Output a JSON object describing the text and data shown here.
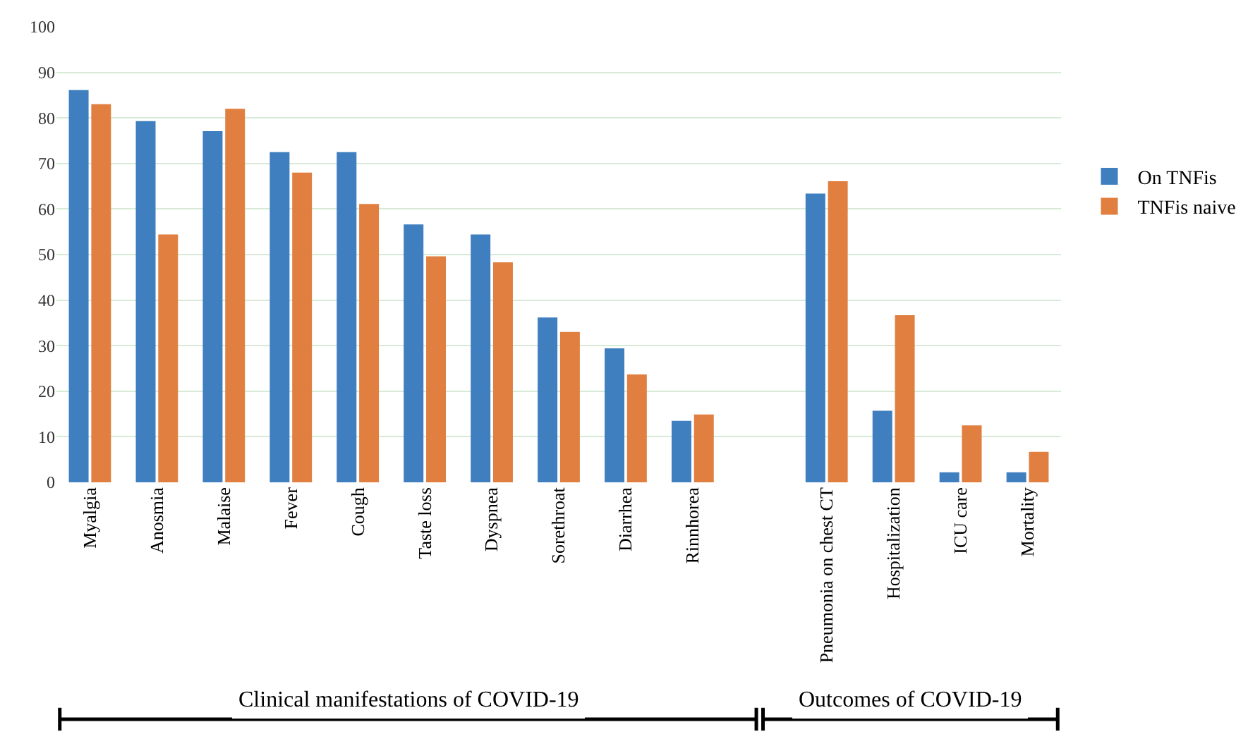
{
  "chart_data": {
    "type": "bar",
    "categories": [
      "Myalgia",
      "Anosmia",
      "Malaise",
      "Fever",
      "Cough",
      "Taste loss",
      "Dyspnea",
      "Sorethroat",
      "Diarrhea",
      "Rinnhorea",
      null,
      "Pneumonia on chest CT",
      "Hospitalization",
      "ICU care",
      "Mortality"
    ],
    "series": [
      {
        "name": "On TNFis",
        "color": "#3f7fbf",
        "values": [
          86.1,
          79.3,
          77.1,
          72.5,
          72.5,
          56.6,
          54.4,
          36.2,
          29.4,
          13.5,
          null,
          63.4,
          15.7,
          2.2,
          2.2
        ]
      },
      {
        "name": "TNFis naive",
        "color": "#e07f40",
        "values": [
          83.0,
          54.4,
          82.0,
          68.0,
          61.1,
          49.6,
          48.3,
          33.0,
          23.7,
          14.9,
          null,
          66.1,
          36.7,
          12.5,
          6.7
        ]
      }
    ],
    "ylim": [
      0,
      100
    ],
    "yticks": [
      0,
      10,
      20,
      30,
      40,
      50,
      60,
      70,
      80,
      90,
      100
    ],
    "grid": "y",
    "legend": "right",
    "annotations": [
      "Clinical manifestations of COVID-19",
      "Outcomes of COVID-19"
    ]
  }
}
